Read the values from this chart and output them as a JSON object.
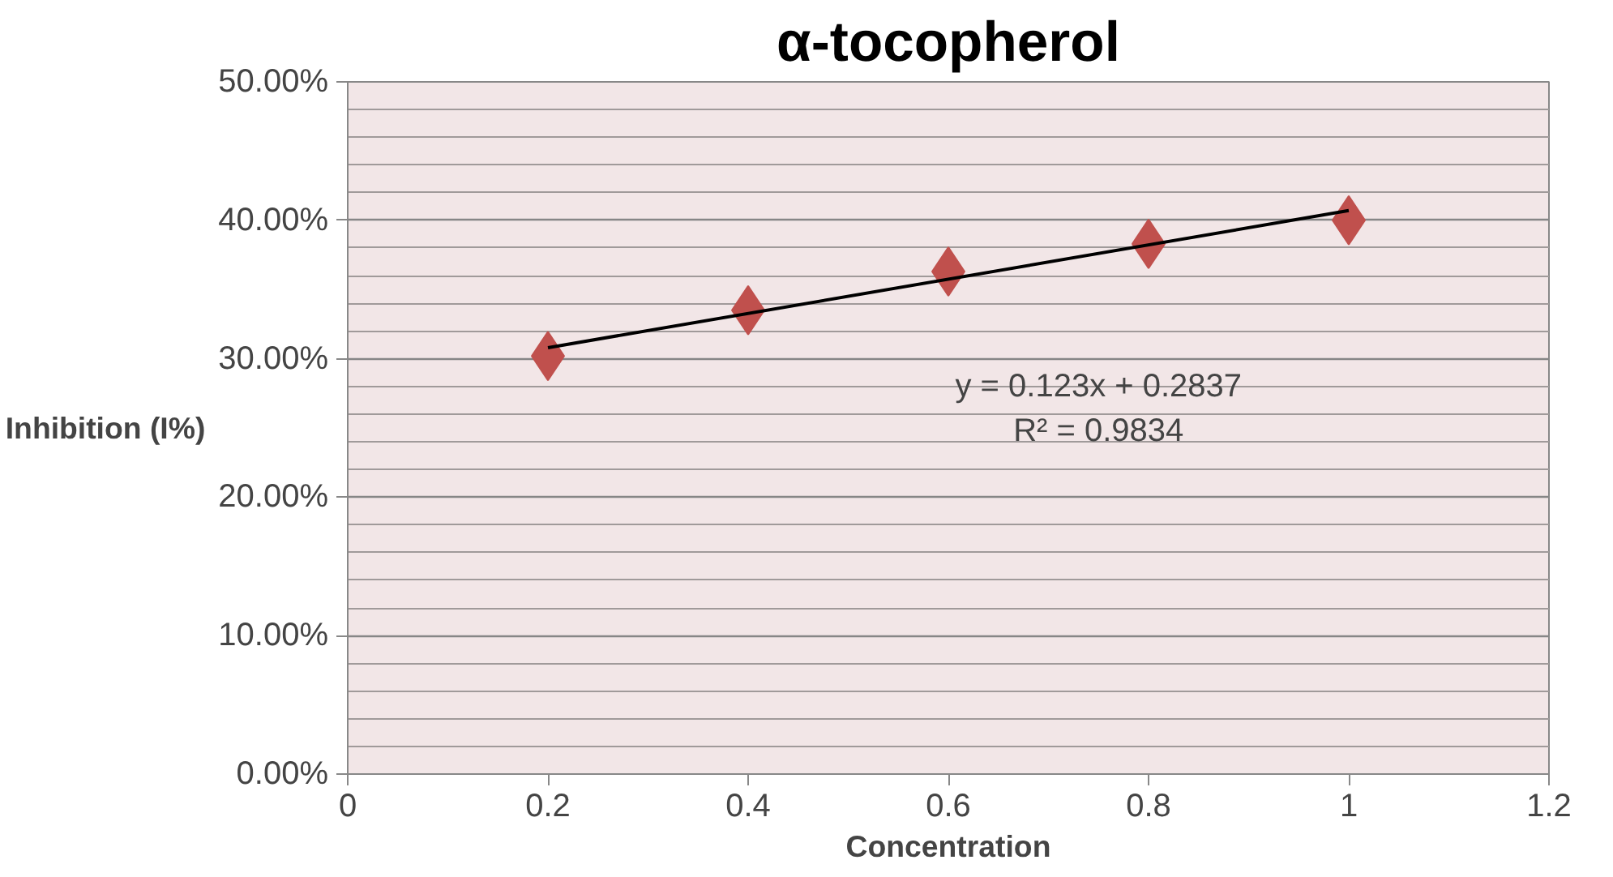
{
  "chart_data": {
    "type": "scatter",
    "title": "α-tocopherol",
    "xlabel": "Concentration",
    "ylabel": "Inhibition (I%)",
    "x": [
      0.2,
      0.4,
      0.6,
      0.8,
      1
    ],
    "series": [
      {
        "color": "#c0504d",
        "marker": "diamond",
        "values": [
          0.302,
          0.335,
          0.363,
          0.383,
          0.4
        ]
      },
      {
        "type": "line",
        "color": "#000000",
        "x": [
          0.2,
          1
        ],
        "values": [
          0.308,
          0.407
        ],
        "marker": "none",
        "line_style": "solid"
      }
    ],
    "xlim": [
      0,
      1.2
    ],
    "xticks": [
      0,
      0.2,
      0.4,
      0.6,
      0.8,
      1,
      1.2
    ],
    "ylim": [
      0,
      0.5
    ],
    "yticks": [
      {
        "value": 0,
        "label": "0.00%"
      },
      {
        "value": 0.1,
        "label": "10.00%"
      },
      {
        "value": 0.2,
        "label": "20.00%"
      },
      {
        "value": 0.3,
        "label": "30.00%"
      },
      {
        "value": 0.4,
        "label": "40.00%"
      },
      {
        "value": 0.5,
        "label": "50.00%"
      }
    ],
    "annotations": [
      "y = 0.123x + 0.2837",
      "R² = 0.9834"
    ],
    "grid": "y"
  }
}
